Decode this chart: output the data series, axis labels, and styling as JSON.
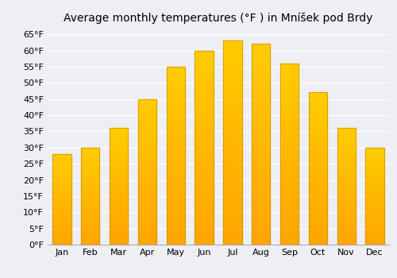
{
  "title": "Average monthly temperatures (°F ) in Mníšek pod Brdy",
  "months": [
    "Jan",
    "Feb",
    "Mar",
    "Apr",
    "May",
    "Jun",
    "Jul",
    "Aug",
    "Sep",
    "Oct",
    "Nov",
    "Dec"
  ],
  "values": [
    28,
    30,
    36,
    45,
    55,
    60,
    63,
    62,
    56,
    47,
    36,
    30
  ],
  "bar_color": "#FFA500",
  "bar_edge_color": "#C89000",
  "background_color": "#eeeef5",
  "grid_color": "#ffffff",
  "ylim": [
    0,
    67
  ],
  "yticks": [
    0,
    5,
    10,
    15,
    20,
    25,
    30,
    35,
    40,
    45,
    50,
    55,
    60,
    65
  ],
  "ytick_labels": [
    "0°F",
    "5°F",
    "10°F",
    "15°F",
    "20°F",
    "25°F",
    "30°F",
    "35°F",
    "40°F",
    "45°F",
    "50°F",
    "55°F",
    "60°F",
    "65°F"
  ],
  "title_fontsize": 10,
  "tick_fontsize": 8
}
